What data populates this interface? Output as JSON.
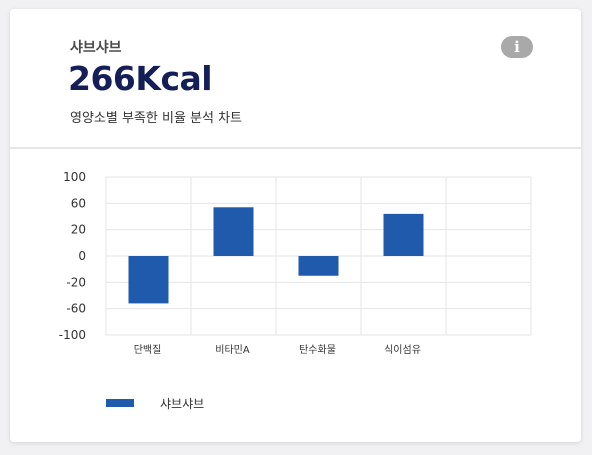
{
  "header": {
    "subtitle": "샤브샤브",
    "kcal": "266Kcal",
    "description": "영양소별 부족한 비율 분석 차트",
    "info_icon": "info-icon",
    "info_glyph": "i"
  },
  "colors": {
    "bar": "#1f5aac",
    "kcal_text": "#141e57",
    "info_bg": "#a9a9a9"
  },
  "chart_data": {
    "type": "bar",
    "categories": [
      "단백질",
      "비타민A",
      "탄수화물",
      "식이섬유",
      ""
    ],
    "series": [
      {
        "name": "샤브샤브",
        "values": [
          -52,
          54,
          -15,
          44,
          null
        ]
      }
    ],
    "yticks": [
      100,
      60,
      20,
      0,
      -20,
      -60,
      -100
    ],
    "ylim": [
      -100,
      100
    ],
    "grid": true,
    "legend": "bottom-left"
  },
  "legend": {
    "label": "샤브샤브"
  }
}
